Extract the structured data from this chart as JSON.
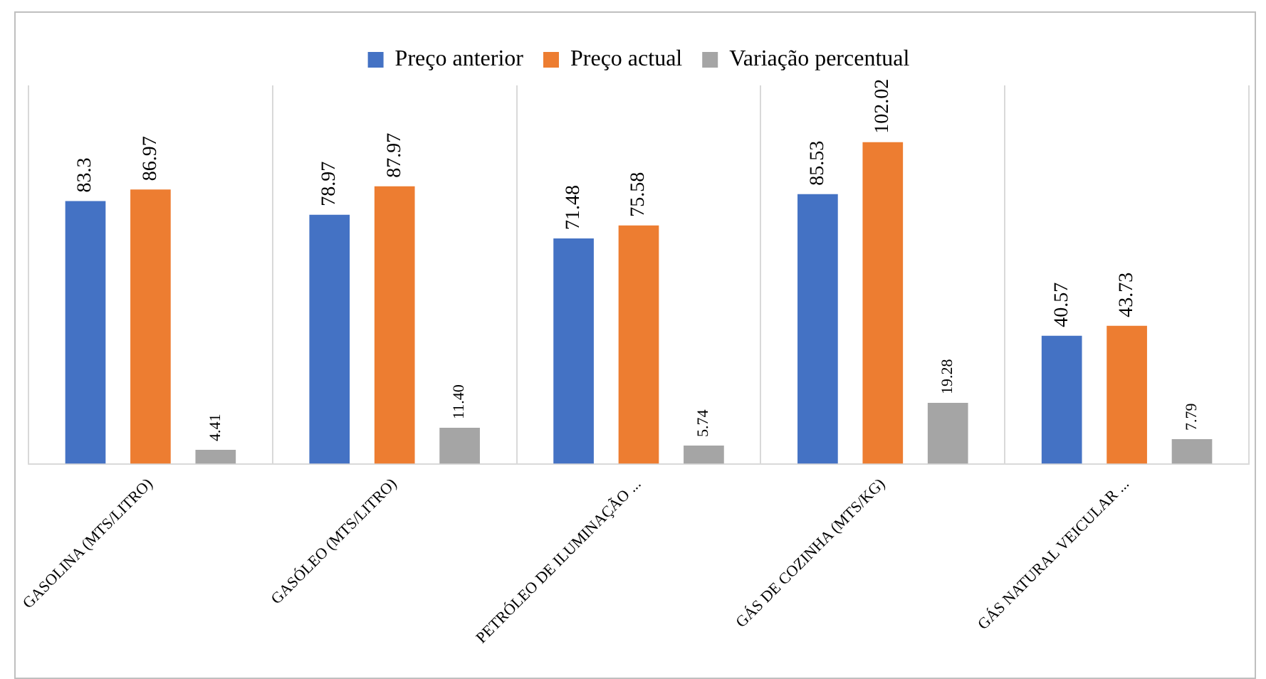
{
  "chart_data": {
    "type": "bar",
    "categories": [
      "GASOLINA (MTS/LITRO)",
      "GASÓLEO (MTS/LITRO)",
      "PETRÓLEO DE ILUMINAÇÃO ...",
      "GÁS DE COZINHA (MTS/KG)",
      "GÁS NATURAL VEICULAR ..."
    ],
    "series": [
      {
        "name": "Preço anterior",
        "color": "#4472c4",
        "values": [
          83.3,
          78.97,
          71.48,
          85.53,
          40.57
        ],
        "value_labels": [
          "83.3",
          "78.97",
          "71.48",
          "85.53",
          "40.57"
        ]
      },
      {
        "name": "Preço actual",
        "color": "#ed7d31",
        "values": [
          86.97,
          87.97,
          75.58,
          102.02,
          43.73
        ],
        "value_labels": [
          "86.97",
          "87.97",
          "75.58",
          "102.02",
          "43.73"
        ]
      },
      {
        "name": "Variação percentual",
        "color": "#a5a5a5",
        "values": [
          4.41,
          11.4,
          5.74,
          19.28,
          7.79
        ],
        "value_labels": [
          "4.41",
          "11.40",
          "5.74",
          "19.28",
          "7.79"
        ]
      }
    ],
    "grid": "x",
    "legend": "top"
  }
}
